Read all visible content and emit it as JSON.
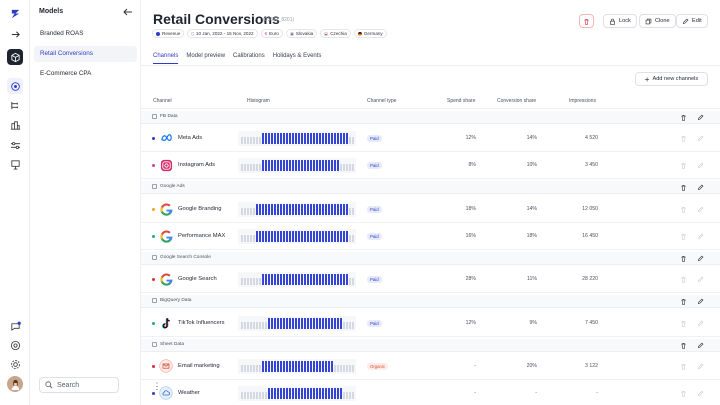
{
  "sidebar": {
    "heading": "Models",
    "items": [
      {
        "label": "Branded ROAS"
      },
      {
        "label": "Retail Conversions"
      },
      {
        "label": "E-Commerce CPA"
      }
    ],
    "search_placeholder": "Search"
  },
  "header": {
    "title": "Retail Conversions",
    "model_id": "(03642_8201)",
    "tags": [
      {
        "label": "Revenue",
        "color": "#2f3bc4"
      },
      {
        "label": "10 Jan, 2022 - 15 Nov, 2022",
        "color": "#6b7280"
      },
      {
        "label": "Euro",
        "color": "#d63ca0"
      },
      {
        "label": "Slovakia",
        "color": "#2f5fd0"
      },
      {
        "label": "Czechia",
        "color": "#d62f3a"
      },
      {
        "label": "Germany",
        "color": "#111111"
      }
    ],
    "buttons": {
      "lock": "Lock",
      "clone": "Clone",
      "edit": "Edit"
    }
  },
  "tabs": [
    {
      "label": "Channels"
    },
    {
      "label": "Model preview"
    },
    {
      "label": "Calibrations"
    },
    {
      "label": "Holidays & Events"
    }
  ],
  "add_button": "Add new channels",
  "columns": {
    "channel": "Channel",
    "histogram": "Histogram",
    "type": "Channel type",
    "spend": "Spend share",
    "conversion": "Conversion share",
    "impressions": "Impressions"
  },
  "groups": [
    {
      "label": "FB Data"
    },
    {
      "label": "Google Ads"
    },
    {
      "label": "Google Search Console"
    },
    {
      "label": "BigQuery Data"
    },
    {
      "label": "Sheet Data"
    }
  ],
  "rows": [
    {
      "name": "Meta Ads",
      "type": "Paid",
      "spend": "12%",
      "conversion": "14%",
      "impressions": "4 520",
      "dot": "#2f3bc4",
      "icon": "meta-icon"
    },
    {
      "name": "Instagram Ads",
      "type": "Paid",
      "spend": "8%",
      "conversion": "10%",
      "impressions": "3 450",
      "dot": "#d63ca0",
      "icon": "instagram-icon"
    },
    {
      "name": "Google Branding",
      "type": "Paid",
      "spend": "18%",
      "conversion": "14%",
      "impressions": "12 050",
      "dot": "#f2a31b",
      "icon": "google-icon"
    },
    {
      "name": "Performance MAX",
      "type": "Paid",
      "spend": "16%",
      "conversion": "18%",
      "impressions": "16 450",
      "dot": "#2aa876",
      "icon": "google-icon"
    },
    {
      "name": "Google Search",
      "type": "Paid",
      "spend": "28%",
      "conversion": "11%",
      "impressions": "28 220",
      "dot": "#d62f3a",
      "icon": "google-icon"
    },
    {
      "name": "TikTok Influencers",
      "type": "Paid",
      "spend": "12%",
      "conversion": "9%",
      "impressions": "7 450",
      "dot": "#2aa876",
      "icon": "tiktok-icon"
    },
    {
      "name": "Email marketing",
      "type": "Organic",
      "spend": "-",
      "conversion": "20%",
      "impressions": "3 122",
      "dot": "#d62f3a",
      "icon": "email-icon"
    },
    {
      "name": "Weather",
      "type": "",
      "spend": "-",
      "conversion": "-",
      "impressions": "-",
      "dot": "#2f3bc4",
      "icon": "weather-icon"
    }
  ],
  "colors": {
    "accent": "#2f3bc4",
    "bar": "#3344d6",
    "bar_light": "#d6d9e4"
  }
}
